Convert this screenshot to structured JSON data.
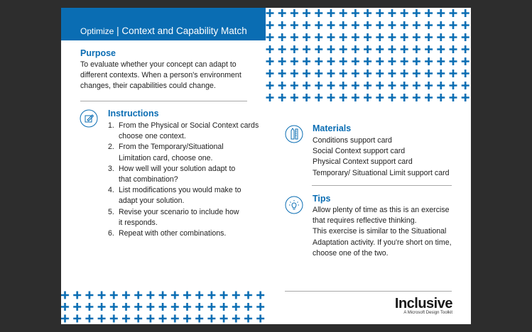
{
  "header": {
    "section": "Optimize",
    "separator": "|",
    "title": "Context and Capability Match"
  },
  "purpose": {
    "heading": "Purpose",
    "text": [
      "To evaluate whether your concept can adapt to",
      "different contexts. When a person's environment",
      "changes, their capabilities could change."
    ]
  },
  "instructions": {
    "heading": "Instructions",
    "icon": "pencil-note-icon",
    "items": [
      {
        "n": "1.",
        "lines": [
          "From the Physical or Social Context cards",
          "choose one context."
        ]
      },
      {
        "n": "2.",
        "lines": [
          "From the Temporary/Situational",
          "Limitation card, choose one."
        ]
      },
      {
        "n": "3.",
        "lines": [
          "How well will your solution adapt to",
          "that combination?"
        ]
      },
      {
        "n": "4.",
        "lines": [
          "List modifications you would make to",
          "adapt your solution."
        ]
      },
      {
        "n": "5.",
        "lines": [
          "Revise your scenario to include how",
          "it responds."
        ]
      },
      {
        "n": "6.",
        "lines": [
          "Repeat with other combinations."
        ]
      }
    ]
  },
  "materials": {
    "heading": "Materials",
    "icon": "pencil-ruler-icon",
    "items": [
      "Conditions support card",
      "Social Context support card",
      "Physical Context support card",
      "Temporary/ Situational Limit support card"
    ]
  },
  "tips": {
    "heading": "Tips",
    "icon": "lightbulb-icon",
    "lines": [
      "Allow plenty of time as this is an exercise",
      "that requires reflective thinking.",
      "This exercise is similar to the Situational",
      "Adaptation activity. If you're short on time,",
      "choose one of the two."
    ]
  },
  "logo": {
    "name": "Inclusive",
    "tagline": "A Microsoft Design Toolkit"
  },
  "colors": {
    "accent": "#0a6db3",
    "background": "#2d2d2d"
  }
}
